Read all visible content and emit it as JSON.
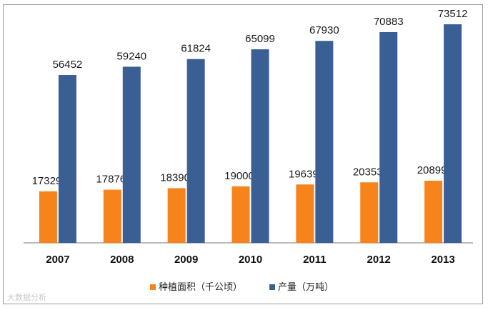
{
  "chart_data": {
    "type": "bar",
    "title": "",
    "xlabel": "",
    "ylabel": "",
    "categories": [
      "2007",
      "2008",
      "2009",
      "2010",
      "2011",
      "2012",
      "2013"
    ],
    "series": [
      {
        "name": "种植面积（千公顷）",
        "color": "#f7831c",
        "values": [
          17329,
          17876,
          18390,
          19000,
          19639,
          20353,
          20899
        ]
      },
      {
        "name": "产量（万吨）",
        "color": "#3a5f94",
        "values": [
          56452,
          59240,
          61824,
          65099,
          67930,
          70883,
          73512
        ]
      }
    ],
    "ylim": [
      0,
      80000
    ],
    "grid": false,
    "legend_position": "bottom"
  },
  "watermark": "大数据分析"
}
